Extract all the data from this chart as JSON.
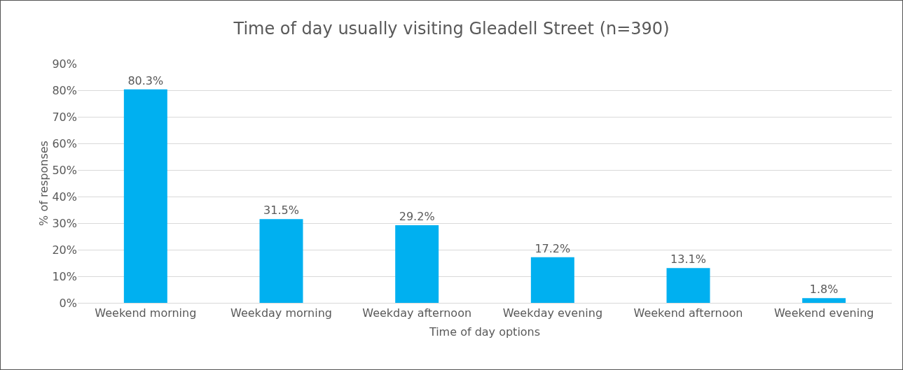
{
  "chart_data": {
    "type": "bar",
    "title": "Time of day usually visiting Gleadell Street (n=390)",
    "xlabel": "Time of day options",
    "ylabel": "% of responses",
    "categories": [
      "Weekend morning",
      "Weekday morning",
      "Weekday afternoon",
      "Weekday evening",
      "Weekend afternoon",
      "Weekend evening"
    ],
    "values": [
      80.3,
      31.5,
      29.2,
      17.2,
      13.1,
      1.8
    ],
    "value_labels": [
      "80.3%",
      "31.5%",
      "29.2%",
      "17.2%",
      "13.1%",
      "1.8%"
    ],
    "color": "#00b0f0",
    "ylim": [
      0,
      90
    ],
    "yticks": [
      {
        "value": 0,
        "label": "0%"
      },
      {
        "value": 10,
        "label": "10%"
      },
      {
        "value": 20,
        "label": "20%"
      },
      {
        "value": 30,
        "label": "30%"
      },
      {
        "value": 40,
        "label": "40%"
      },
      {
        "value": 50,
        "label": "50%"
      },
      {
        "value": 60,
        "label": "60%"
      },
      {
        "value": 70,
        "label": "70%"
      },
      {
        "value": 80,
        "label": "80%"
      },
      {
        "value": 90,
        "label": "90%"
      }
    ],
    "grid": "y"
  }
}
